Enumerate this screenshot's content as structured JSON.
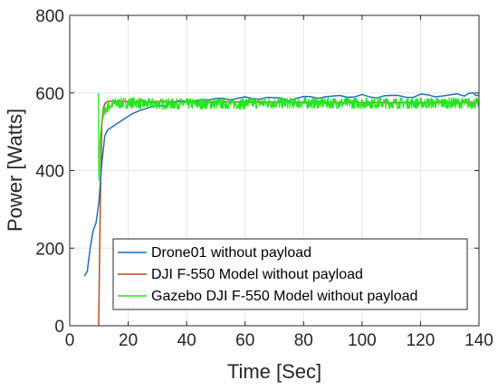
{
  "chart_data": {
    "type": "line",
    "xlabel": "Time [Sec]",
    "ylabel": "Power [Watts]",
    "xlim": [
      0,
      140
    ],
    "ylim": [
      0,
      800
    ],
    "xticks": [
      0,
      20,
      40,
      60,
      80,
      100,
      120,
      140
    ],
    "yticks": [
      0,
      200,
      400,
      600,
      800
    ],
    "grid": true,
    "legend_position": "lower-right",
    "series": [
      {
        "name": "Drone01 without payload",
        "color": "#1f6fb8",
        "x": [
          5,
          6,
          7,
          8,
          9,
          10,
          11,
          12,
          13,
          15,
          17,
          19,
          21,
          24,
          27,
          30,
          35,
          40,
          45,
          50,
          55,
          60,
          65,
          70,
          75,
          80,
          85,
          90,
          95,
          100,
          105,
          110,
          115,
          120,
          125,
          130,
          135,
          138,
          140
        ],
        "y": [
          128,
          140,
          200,
          245,
          265,
          320,
          420,
          490,
          505,
          515,
          525,
          535,
          545,
          555,
          562,
          568,
          574,
          578,
          583,
          586,
          582,
          590,
          584,
          588,
          580,
          591,
          586,
          592,
          589,
          596,
          587,
          594,
          589,
          597,
          590,
          595,
          592,
          600,
          594
        ]
      },
      {
        "name": "DJI F-550 Model without payload",
        "color": "#b8501f",
        "x": [
          9.9,
          10.1,
          10.5,
          11,
          11.5,
          12,
          12.5,
          13,
          14,
          15,
          16,
          20,
          30,
          40,
          50,
          60,
          70,
          80,
          90,
          100,
          110,
          120,
          130,
          140
        ],
        "y": [
          0,
          120,
          330,
          520,
          560,
          572,
          576,
          578,
          579,
          579,
          579,
          578,
          578,
          577,
          577,
          577,
          576,
          576,
          575,
          575,
          575,
          575,
          575,
          575
        ],
        "style": "smooth"
      },
      {
        "name": "Gazebo DJI F-550 Model without payload",
        "color": "#22e61e",
        "x_start": 9.8,
        "x_end": 140,
        "y": [
          600,
          340,
          470,
          530,
          555,
          565,
          572,
          574,
          575
        ],
        "steady_value": 572,
        "noise_amplitude": 14,
        "style": "noisy"
      }
    ]
  }
}
